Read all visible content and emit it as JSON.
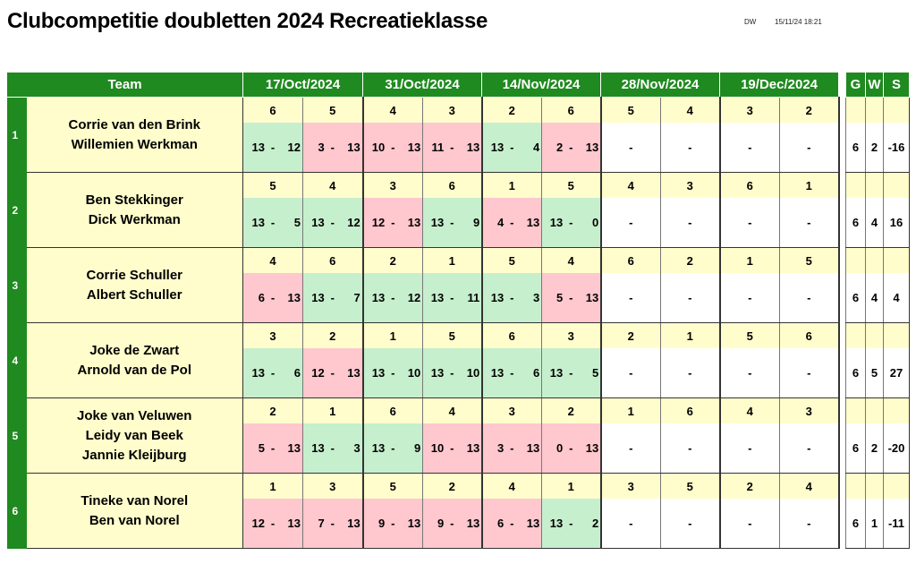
{
  "title": "Clubcompetitie doubletten 2024 Recreatieklasse",
  "meta": {
    "initials": "DW",
    "datetime": "15/11/24 18:21"
  },
  "headers": {
    "team": "Team",
    "dates": [
      "17/Oct/2024",
      "31/Oct/2024",
      "14/Nov/2024",
      "28/Nov/2024",
      "19/Dec/2024"
    ],
    "stats": [
      "G",
      "W",
      "S"
    ]
  },
  "teams": [
    {
      "rank": "1",
      "players": [
        "Corrie van den Brink",
        "Willemien Werkman"
      ],
      "opponents": [
        "6",
        "5",
        "4",
        "3",
        "2",
        "6",
        "5",
        "4",
        "3",
        "2"
      ],
      "scores": [
        [
          "13",
          "12",
          "win"
        ],
        [
          "3",
          "13",
          "loss"
        ],
        [
          "10",
          "13",
          "loss"
        ],
        [
          "11",
          "13",
          "loss"
        ],
        [
          "13",
          "4",
          "win"
        ],
        [
          "2",
          "13",
          "loss"
        ],
        [
          "",
          "",
          "none"
        ],
        [
          "",
          "",
          "none"
        ],
        [
          "",
          "",
          "none"
        ],
        [
          "",
          "",
          "none"
        ]
      ],
      "stats": {
        "G": "6",
        "W": "2",
        "S": "-16"
      }
    },
    {
      "rank": "2",
      "players": [
        "Ben Stekkinger",
        "Dick Werkman"
      ],
      "opponents": [
        "5",
        "4",
        "3",
        "6",
        "1",
        "5",
        "4",
        "3",
        "6",
        "1"
      ],
      "scores": [
        [
          "13",
          "5",
          "win"
        ],
        [
          "13",
          "12",
          "win"
        ],
        [
          "12",
          "13",
          "loss"
        ],
        [
          "13",
          "9",
          "win"
        ],
        [
          "4",
          "13",
          "loss"
        ],
        [
          "13",
          "0",
          "win"
        ],
        [
          "",
          "",
          "none"
        ],
        [
          "",
          "",
          "none"
        ],
        [
          "",
          "",
          "none"
        ],
        [
          "",
          "",
          "none"
        ]
      ],
      "stats": {
        "G": "6",
        "W": "4",
        "S": "16"
      }
    },
    {
      "rank": "3",
      "players": [
        "Corrie Schuller",
        "Albert Schuller"
      ],
      "opponents": [
        "4",
        "6",
        "2",
        "1",
        "5",
        "4",
        "6",
        "2",
        "1",
        "5"
      ],
      "scores": [
        [
          "6",
          "13",
          "loss"
        ],
        [
          "13",
          "7",
          "win"
        ],
        [
          "13",
          "12",
          "win"
        ],
        [
          "13",
          "11",
          "win"
        ],
        [
          "13",
          "3",
          "win"
        ],
        [
          "5",
          "13",
          "loss"
        ],
        [
          "",
          "",
          "none"
        ],
        [
          "",
          "",
          "none"
        ],
        [
          "",
          "",
          "none"
        ],
        [
          "",
          "",
          "none"
        ]
      ],
      "stats": {
        "G": "6",
        "W": "4",
        "S": "4"
      }
    },
    {
      "rank": "4",
      "players": [
        "Joke de Zwart",
        "Arnold van de Pol"
      ],
      "opponents": [
        "3",
        "2",
        "1",
        "5",
        "6",
        "3",
        "2",
        "1",
        "5",
        "6"
      ],
      "scores": [
        [
          "13",
          "6",
          "win"
        ],
        [
          "12",
          "13",
          "loss"
        ],
        [
          "13",
          "10",
          "win"
        ],
        [
          "13",
          "10",
          "win"
        ],
        [
          "13",
          "6",
          "win"
        ],
        [
          "13",
          "5",
          "win"
        ],
        [
          "",
          "",
          "none"
        ],
        [
          "",
          "",
          "none"
        ],
        [
          "",
          "",
          "none"
        ],
        [
          "",
          "",
          "none"
        ]
      ],
      "stats": {
        "G": "6",
        "W": "5",
        "S": "27"
      }
    },
    {
      "rank": "5",
      "players": [
        "Joke van Veluwen",
        "Leidy van Beek",
        "Jannie Kleijburg"
      ],
      "opponents": [
        "2",
        "1",
        "6",
        "4",
        "3",
        "2",
        "1",
        "6",
        "4",
        "3"
      ],
      "scores": [
        [
          "5",
          "13",
          "loss"
        ],
        [
          "13",
          "3",
          "win"
        ],
        [
          "13",
          "9",
          "win"
        ],
        [
          "10",
          "13",
          "loss"
        ],
        [
          "3",
          "13",
          "loss"
        ],
        [
          "0",
          "13",
          "loss"
        ],
        [
          "",
          "",
          "none"
        ],
        [
          "",
          "",
          "none"
        ],
        [
          "",
          "",
          "none"
        ],
        [
          "",
          "",
          "none"
        ]
      ],
      "stats": {
        "G": "6",
        "W": "2",
        "S": "-20"
      }
    },
    {
      "rank": "6",
      "players": [
        "Tineke van Norel",
        "Ben van Norel"
      ],
      "opponents": [
        "1",
        "3",
        "5",
        "2",
        "4",
        "1",
        "3",
        "5",
        "2",
        "4"
      ],
      "scores": [
        [
          "12",
          "13",
          "loss"
        ],
        [
          "7",
          "13",
          "loss"
        ],
        [
          "9",
          "13",
          "loss"
        ],
        [
          "9",
          "13",
          "loss"
        ],
        [
          "6",
          "13",
          "loss"
        ],
        [
          "13",
          "2",
          "win"
        ],
        [
          "",
          "",
          "none"
        ],
        [
          "",
          "",
          "none"
        ],
        [
          "",
          "",
          "none"
        ],
        [
          "",
          "",
          "none"
        ]
      ],
      "stats": {
        "G": "6",
        "W": "1",
        "S": "-11"
      }
    }
  ]
}
